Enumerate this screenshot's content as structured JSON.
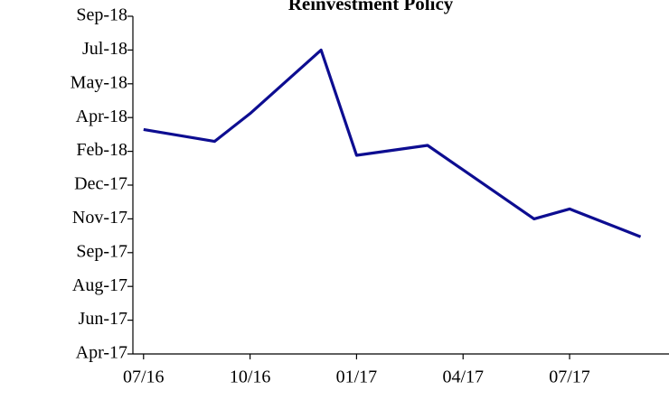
{
  "chart_data": {
    "type": "line",
    "title": "Reinvestment Policy",
    "x": [
      0,
      2,
      3,
      5,
      6,
      8,
      11,
      12,
      14
    ],
    "series": [
      {
        "name": "Reinvestment Policy",
        "color": "#0d0d91",
        "values": [
          11.3,
          10.7,
          12.1,
          15.3,
          10.0,
          10.5,
          6.8,
          7.3,
          5.9
        ]
      }
    ],
    "xlim": [
      -0.3,
      14.8
    ],
    "xticks": [
      {
        "value": 0,
        "label": "07/16"
      },
      {
        "value": 3,
        "label": "10/16"
      },
      {
        "value": 6,
        "label": "01/17"
      },
      {
        "value": 9,
        "label": "04/17"
      },
      {
        "value": 12,
        "label": "07/17"
      }
    ],
    "ylim": [
      0,
      17
    ],
    "yticks": [
      {
        "value": 0,
        "label": "Apr-17"
      },
      {
        "value": 1.7,
        "label": "Jun-17"
      },
      {
        "value": 3.4,
        "label": "Aug-17"
      },
      {
        "value": 5.1,
        "label": "Sep-17"
      },
      {
        "value": 6.8,
        "label": "Nov-17"
      },
      {
        "value": 8.5,
        "label": "Dec-17"
      },
      {
        "value": 10.2,
        "label": "Feb-18"
      },
      {
        "value": 11.9,
        "label": "Apr-18"
      },
      {
        "value": 13.6,
        "label": "May-18"
      },
      {
        "value": 15.3,
        "label": "Jul-18"
      },
      {
        "value": 17,
        "label": "Sep-18"
      }
    ],
    "grid": false
  }
}
